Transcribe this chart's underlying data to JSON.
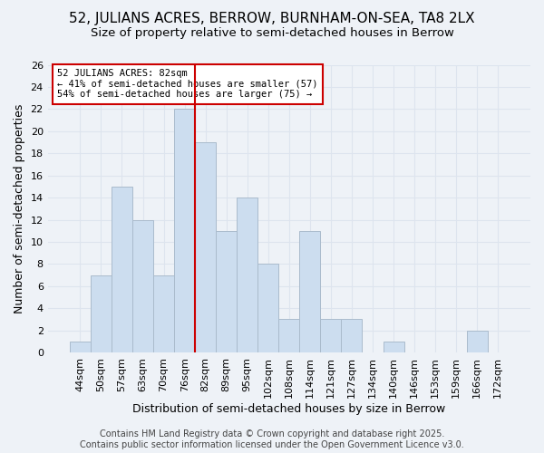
{
  "title": "52, JULIANS ACRES, BERROW, BURNHAM-ON-SEA, TA8 2LX",
  "subtitle": "Size of property relative to semi-detached houses in Berrow",
  "xlabel": "Distribution of semi-detached houses by size in Berrow",
  "ylabel": "Number of semi-detached properties",
  "categories": [
    "44sqm",
    "50sqm",
    "57sqm",
    "63sqm",
    "70sqm",
    "76sqm",
    "82sqm",
    "89sqm",
    "95sqm",
    "102sqm",
    "108sqm",
    "114sqm",
    "121sqm",
    "127sqm",
    "134sqm",
    "140sqm",
    "146sqm",
    "153sqm",
    "159sqm",
    "166sqm",
    "172sqm"
  ],
  "values": [
    1,
    7,
    15,
    12,
    7,
    22,
    19,
    11,
    14,
    8,
    3,
    11,
    3,
    3,
    0,
    1,
    0,
    0,
    0,
    2,
    0
  ],
  "bar_color": "#ccddef",
  "bar_edge_color": "#aabbcc",
  "vline_x_index": 5.5,
  "vline_color": "#cc0000",
  "annotation_text": "52 JULIANS ACRES: 82sqm\n← 41% of semi-detached houses are smaller (57)\n54% of semi-detached houses are larger (75) →",
  "annotation_box_color": "#ffffff",
  "annotation_box_edge": "#cc0000",
  "ylim": [
    0,
    26
  ],
  "yticks": [
    0,
    2,
    4,
    6,
    8,
    10,
    12,
    14,
    16,
    18,
    20,
    22,
    24,
    26
  ],
  "footer": "Contains HM Land Registry data © Crown copyright and database right 2025.\nContains public sector information licensed under the Open Government Licence v3.0.",
  "bg_color": "#eef2f7",
  "grid_color": "#dde4ee",
  "title_fontsize": 11,
  "subtitle_fontsize": 9.5,
  "axis_fontsize": 9,
  "tick_fontsize": 8,
  "footer_fontsize": 7
}
